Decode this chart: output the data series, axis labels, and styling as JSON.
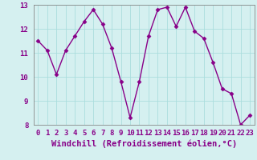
{
  "x": [
    0,
    1,
    2,
    3,
    4,
    5,
    6,
    7,
    8,
    9,
    10,
    11,
    12,
    13,
    14,
    15,
    16,
    17,
    18,
    19,
    20,
    21,
    22,
    23
  ],
  "y": [
    11.5,
    11.1,
    10.1,
    11.1,
    11.7,
    12.3,
    12.8,
    12.2,
    11.2,
    9.8,
    8.3,
    9.8,
    11.7,
    12.8,
    12.9,
    12.1,
    12.9,
    11.9,
    11.6,
    10.6,
    9.5,
    9.3,
    8.0,
    8.4
  ],
  "line_color": "#880088",
  "marker": "D",
  "marker_size": 2.5,
  "bg_color": "#d5f0f0",
  "grid_color": "#aadddd",
  "xlabel": "Windchill (Refroidissement éolien,°C)",
  "ylim": [
    8,
    13
  ],
  "xlim": [
    -0.5,
    23.5
  ],
  "yticks": [
    8,
    9,
    10,
    11,
    12,
    13
  ],
  "xticks": [
    0,
    1,
    2,
    3,
    4,
    5,
    6,
    7,
    8,
    9,
    10,
    11,
    12,
    13,
    14,
    15,
    16,
    17,
    18,
    19,
    20,
    21,
    22,
    23
  ],
  "xlabel_fontsize": 7.5,
  "tick_fontsize": 6.5,
  "line_width": 1.0,
  "axis_color": "#880088",
  "spine_color": "#888888"
}
